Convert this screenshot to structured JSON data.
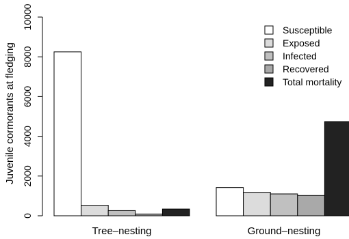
{
  "chart_data": {
    "type": "bar",
    "title": "",
    "xlabel": "",
    "ylabel": "Juvenile cormorants at fledging",
    "ylim": [
      0,
      10000
    ],
    "yticks": [
      0,
      2000,
      4000,
      6000,
      8000,
      10000
    ],
    "ytick_labels": [
      "0",
      "2000",
      "4000",
      "6000",
      "8000",
      "10000"
    ],
    "categories": [
      "Tree–nesting",
      "Ground–nesting"
    ],
    "series": [
      {
        "name": "Susceptible",
        "color": "#ffffff",
        "values": [
          8250,
          1420
        ]
      },
      {
        "name": "Exposed",
        "color": "#dcdcdc",
        "values": [
          530,
          1180
        ]
      },
      {
        "name": "Infected",
        "color": "#c0c0c0",
        "values": [
          260,
          1100
        ]
      },
      {
        "name": "Recovered",
        "color": "#a9a9a9",
        "values": [
          90,
          1020
        ]
      },
      {
        "name": "Total mortality",
        "color": "#222222",
        "values": [
          340,
          4740
        ]
      }
    ],
    "legend_position": "top-right",
    "grid": false
  }
}
